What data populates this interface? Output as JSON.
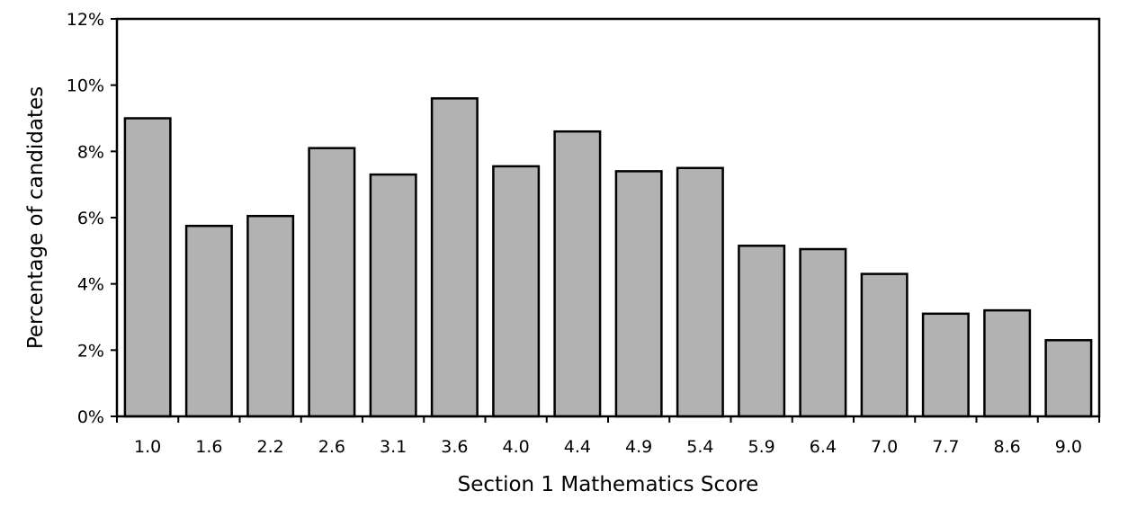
{
  "chart_data": {
    "type": "bar",
    "title": "",
    "xlabel": "Section 1 Mathematics Score",
    "ylabel": "Percentage of candidates",
    "categories": [
      "1.0",
      "1.6",
      "2.2",
      "2.6",
      "3.1",
      "3.6",
      "4.0",
      "4.4",
      "4.9",
      "5.4",
      "5.9",
      "6.4",
      "7.0",
      "7.7",
      "8.6",
      "9.0"
    ],
    "values": [
      9.0,
      5.75,
      6.05,
      8.1,
      7.3,
      9.6,
      7.55,
      8.6,
      7.4,
      7.5,
      5.15,
      5.05,
      4.3,
      3.1,
      3.2,
      2.3
    ],
    "ylim": [
      0,
      12
    ],
    "yticks": [
      0,
      2,
      4,
      6,
      8,
      10,
      12
    ],
    "ytick_labels": [
      "0%",
      "2%",
      "4%",
      "6%",
      "8%",
      "10%",
      "12%"
    ],
    "grid": false,
    "legend": "none",
    "bar_color": "#b2b2b2",
    "bar_edge_color": "#000000"
  }
}
